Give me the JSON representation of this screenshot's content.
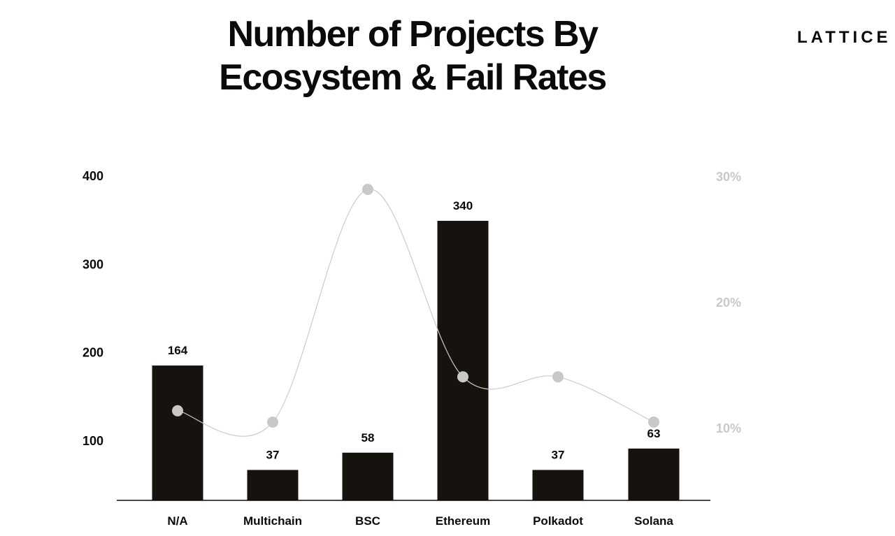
{
  "header": {
    "title_lines": [
      "Number of Projects By",
      "Ecosystem & Fail Rates"
    ],
    "brand": "LATTICE"
  },
  "chart_data": {
    "type": "bar",
    "title": "Number of Projects By Ecosystem & Fail Rates",
    "categories": [
      "N/A",
      "Multichain",
      "BSC",
      "Ethereum",
      "Polkadot",
      "Solana"
    ],
    "series": [
      {
        "type": "bar",
        "axis": "left",
        "values": [
          164,
          37,
          58,
          340,
          37,
          63
        ],
        "data_labels": [
          "164",
          "37",
          "58",
          "340",
          "37",
          "63"
        ],
        "color": "#16130e"
      },
      {
        "type": "line",
        "axis": "right",
        "unit": "%",
        "values": [
          11.4,
          10.5,
          29.0,
          14.1,
          14.1,
          10.5
        ],
        "color": "#c8c8c8"
      }
    ],
    "y_left": {
      "ticks": [
        100,
        200,
        300,
        400
      ],
      "tick_labels": [
        "100",
        "200",
        "300",
        "400"
      ]
    },
    "y_right": {
      "ticks": [
        10,
        20,
        30
      ],
      "tick_labels": [
        "10%",
        "20%",
        "30%"
      ]
    },
    "grid": false,
    "legend": false
  }
}
